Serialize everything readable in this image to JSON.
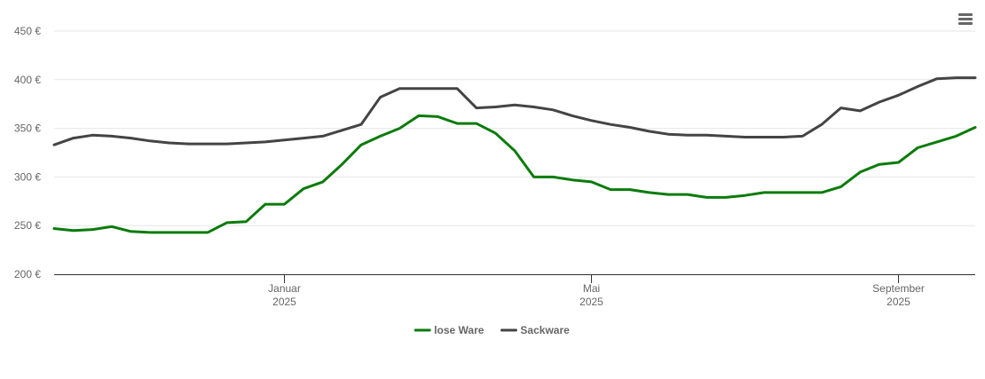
{
  "chart_data": {
    "type": "line",
    "x": [
      0,
      0.25,
      0.5,
      0.75,
      1,
      1.25,
      1.5,
      1.75,
      2,
      2.25,
      2.5,
      2.75,
      3,
      3.25,
      3.5,
      3.75,
      4,
      4.25,
      4.5,
      4.75,
      5,
      5.25,
      5.5,
      5.75,
      6,
      6.25,
      6.5,
      6.75,
      7,
      7.25,
      7.5,
      7.75,
      8,
      8.25,
      8.5,
      8.75,
      9,
      9.25,
      9.5,
      9.75,
      10,
      10.25,
      10.5,
      10.75,
      11,
      11.25,
      11.5,
      11.75,
      12
    ],
    "xlim": [
      0,
      12
    ],
    "xticks": [
      {
        "value": 3,
        "label": "Januar 2025"
      },
      {
        "value": 7,
        "label": "Mai 2025"
      },
      {
        "value": 11,
        "label": "September 2025"
      }
    ],
    "ylim": [
      200,
      450
    ],
    "yticks": [
      {
        "value": 200,
        "label": "200 €"
      },
      {
        "value": 250,
        "label": "250 €"
      },
      {
        "value": 300,
        "label": "300 €"
      },
      {
        "value": 350,
        "label": "350 €"
      },
      {
        "value": 400,
        "label": "400 €"
      },
      {
        "value": 450,
        "label": "450 €"
      }
    ],
    "grid": true,
    "legend": "bottom",
    "series": [
      {
        "name": "lose Ware",
        "color": "#0a7b0a",
        "values": [
          247,
          245,
          246,
          249,
          244,
          243,
          243,
          243,
          243,
          253,
          254,
          272,
          272,
          288,
          295,
          313,
          333,
          342,
          350,
          363,
          362,
          355,
          355,
          345,
          327,
          300,
          300,
          297,
          295,
          287,
          287,
          284,
          282,
          282,
          279,
          279,
          281,
          284,
          284,
          284,
          284,
          290,
          305,
          313,
          315,
          330,
          336,
          342,
          351
        ]
      },
      {
        "name": "Sackware",
        "color": "#444444",
        "values": [
          333,
          340,
          343,
          342,
          340,
          337,
          335,
          334,
          334,
          334,
          335,
          336,
          338,
          340,
          342,
          348,
          354,
          382,
          391,
          391,
          391,
          391,
          371,
          372,
          374,
          372,
          369,
          363,
          358,
          354,
          351,
          347,
          344,
          343,
          343,
          342,
          341,
          341,
          341,
          342,
          354,
          371,
          368,
          377,
          384,
          393,
          401,
          402,
          402
        ]
      }
    ]
  }
}
